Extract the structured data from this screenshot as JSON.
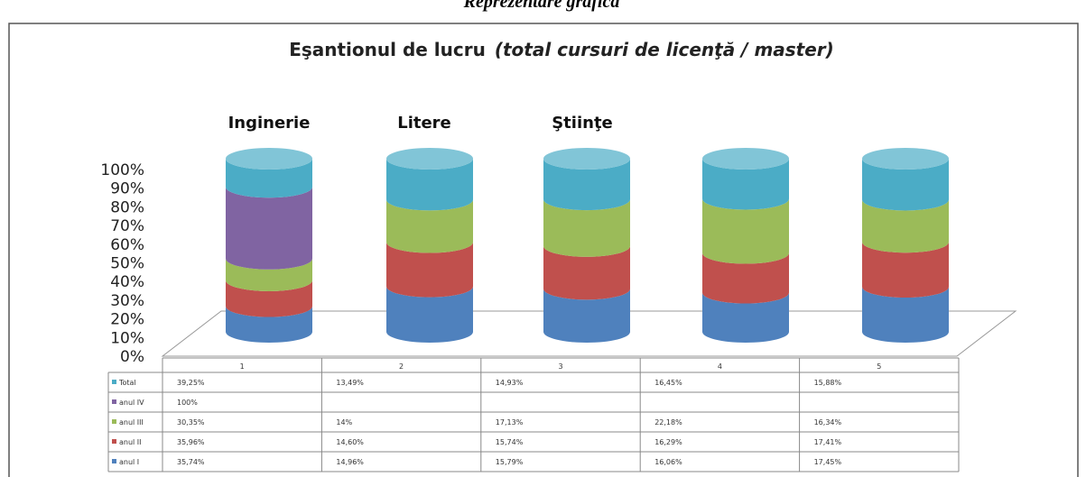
{
  "page_title": "Reprezentare grafică",
  "chart_data": {
    "type": "cylinder-stacked-percent",
    "title": "Eşantionul de lucru",
    "subtitle": "(total cursuri de licenţă / master)",
    "annotations": [
      "Inginerie",
      "Litere",
      "Ştiinţe"
    ],
    "categories": [
      "1",
      "2",
      "3",
      "4",
      "5"
    ],
    "ylim": [
      0,
      100
    ],
    "yticks": [
      {
        "value": 0,
        "label": "0%"
      },
      {
        "value": 10,
        "label": "10%"
      },
      {
        "value": 20,
        "label": "20%"
      },
      {
        "value": 30,
        "label": "30%"
      },
      {
        "value": 40,
        "label": "40%"
      },
      {
        "value": 50,
        "label": "50%"
      },
      {
        "value": 60,
        "label": "60%"
      },
      {
        "value": 70,
        "label": "70%"
      },
      {
        "value": 80,
        "label": "80%"
      },
      {
        "value": 90,
        "label": "90%"
      },
      {
        "value": 100,
        "label": "100%"
      }
    ],
    "series": [
      {
        "name": "Total",
        "color": "#4bacc6",
        "values": [
          39.25,
          13.49,
          14.93,
          16.45,
          15.88
        ],
        "value_labels": [
          "39,25%",
          "13,49%",
          "14,93%",
          "16,45%",
          "15,88%"
        ]
      },
      {
        "name": "anul IV",
        "color": "#8064a2",
        "values": [
          100,
          null,
          null,
          null,
          null
        ],
        "value_labels": [
          "100%",
          null,
          null,
          null,
          null
        ]
      },
      {
        "name": "anul III",
        "color": "#9bbb59",
        "values": [
          30.35,
          14,
          17.13,
          22.18,
          16.34
        ],
        "value_labels": [
          "30,35%",
          "14%",
          "17,13%",
          "22,18%",
          "16,34%"
        ]
      },
      {
        "name": "anul II",
        "color": "#c0504d",
        "values": [
          35.96,
          14.6,
          15.74,
          16.29,
          17.41
        ],
        "value_labels": [
          "35,96%",
          "14,60%",
          "15,74%",
          "16,29%",
          "17,41%"
        ]
      },
      {
        "name": "anul I",
        "color": "#4f81bd",
        "values": [
          35.74,
          14.96,
          15.79,
          16.06,
          17.45
        ],
        "value_labels": [
          "35,74%",
          "14,96%",
          "15,79%",
          "16,06%",
          "17,45%"
        ]
      }
    ]
  }
}
